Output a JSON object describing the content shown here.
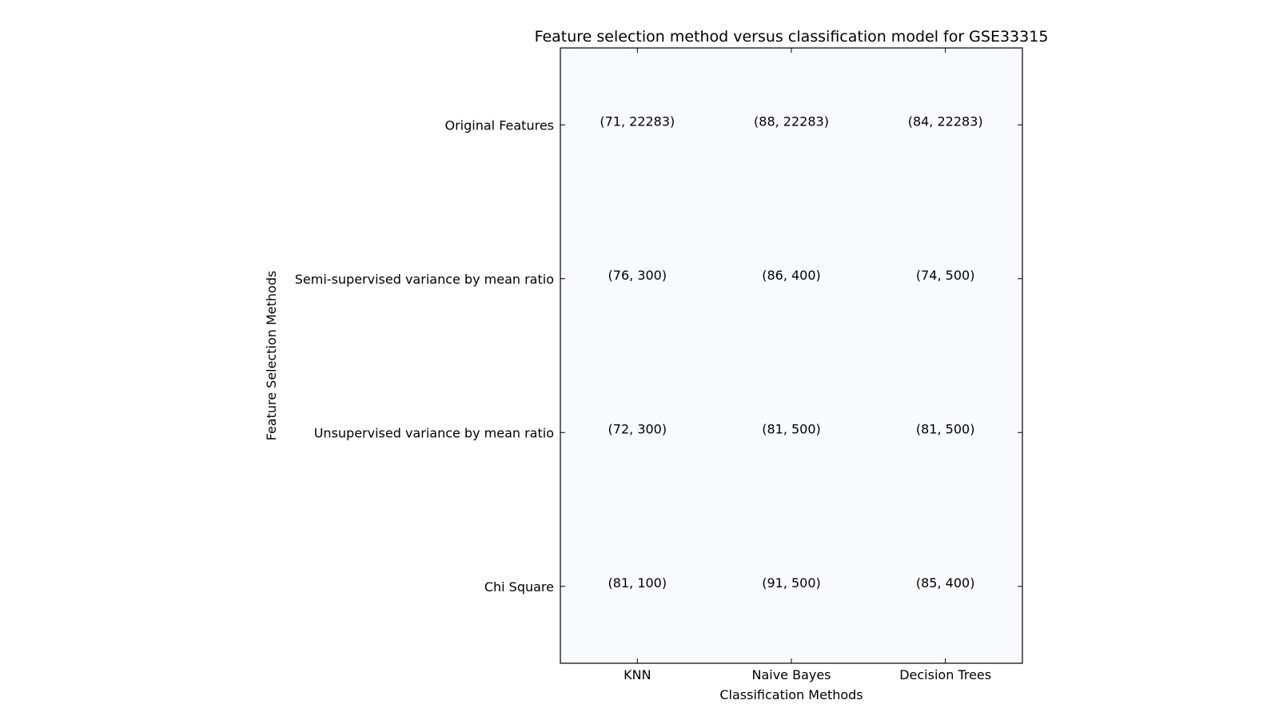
{
  "chart_data": {
    "type": "table",
    "title": "Feature selection method versus classification model for GSE33315",
    "xlabel": "Classification Methods",
    "ylabel": "Feature Selection Methods",
    "columns": [
      "KNN",
      "Naive Bayes",
      "Decision Trees"
    ],
    "rows": [
      "Original Features",
      "Semi-supervised variance by mean ratio",
      "Unsupervised variance by mean ratio",
      "Chi Square"
    ],
    "cells": [
      [
        "(71, 22283)",
        "(88, 22283)",
        "(84, 22283)"
      ],
      [
        "(76, 300)",
        "(86, 400)",
        "(74, 500)"
      ],
      [
        "(72, 300)",
        "(81, 500)",
        "(81, 500)"
      ],
      [
        "(81, 100)",
        "(91, 500)",
        "(85, 400)"
      ]
    ],
    "grid": false,
    "background_color": "#f7fbff",
    "border_color": "#000000"
  }
}
